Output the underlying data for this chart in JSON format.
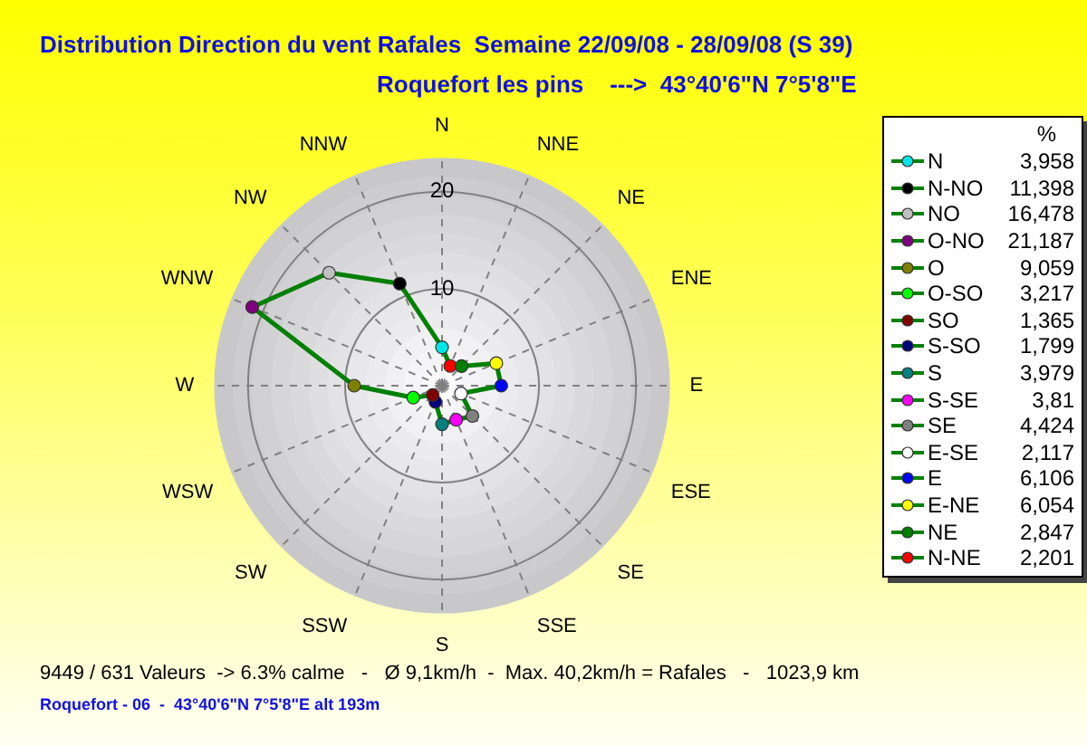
{
  "chart_data": [
    {
      "type": "radar",
      "title": "Distribution Direction du vent Rafales  Semaine 22/09/08 - 28/09/08 (S 39)",
      "subtitle": "Roquefort les pins    --->  43°40'6\"N 7°5'8\"E",
      "categories": [
        "N",
        "NNE",
        "NE",
        "ENE",
        "E",
        "ESE",
        "SE",
        "SSE",
        "S",
        "SSW",
        "SW",
        "WSW",
        "W",
        "WNW",
        "NW",
        "NNW"
      ],
      "series": [
        {
          "color": "#008000",
          "colors": [
            "#00e5e5",
            "#ff0000",
            "#008000",
            "#ffff00",
            "#0000ff",
            "#ffffff",
            "#808080",
            "#ff00ff",
            "#008080",
            "#000080",
            "#800000",
            "#00ff00",
            "#808000",
            "#800080",
            "#c0c0c0",
            "#000000"
          ],
          "values": [
            3.958,
            2.201,
            2.847,
            6.054,
            6.106,
            2.117,
            4.424,
            3.81,
            3.979,
            1.799,
            1.365,
            3.217,
            9.059,
            21.187,
            16.478,
            11.398
          ]
        }
      ],
      "ylim": [
        0,
        23.5
      ],
      "yticks": [
        10,
        20
      ],
      "grid": true,
      "marker": "circle",
      "annotations": [
        "9449 / 631 Valeurs  -> 6.3% calme   -   Ø 9,1km/h  -  Max. 40,2km/h = Rafales   -   1023,9 km",
        "Roquefort - 06  -  43°40'6\"N 7°5'8\"E alt 193m"
      ]
    },
    {
      "type": "other",
      "title": "%",
      "categories": [
        "N",
        "N-NO",
        "NO",
        "O-NO",
        "O",
        "O-SO",
        "SO",
        "S-SO",
        "S",
        "S-SE",
        "SE",
        "E-SE",
        "E",
        "E-NE",
        "NE",
        "N-NE"
      ],
      "value_labels": [
        "3,958",
        "11,398",
        "16,478",
        "21,187",
        "9,059",
        "3,217",
        "1,365",
        "1,799",
        "3,979",
        "3,81",
        "4,424",
        "2,117",
        "6,106",
        "6,054",
        "2,847",
        "2,201"
      ],
      "colors": [
        "#00e5e5",
        "#000000",
        "#c0c0c0",
        "#800080",
        "#808000",
        "#00ff00",
        "#800000",
        "#000080",
        "#008080",
        "#ff00ff",
        "#808080",
        "#ffffff",
        "#0000ff",
        "#ffff00",
        "#008000",
        "#ff0000"
      ]
    }
  ]
}
